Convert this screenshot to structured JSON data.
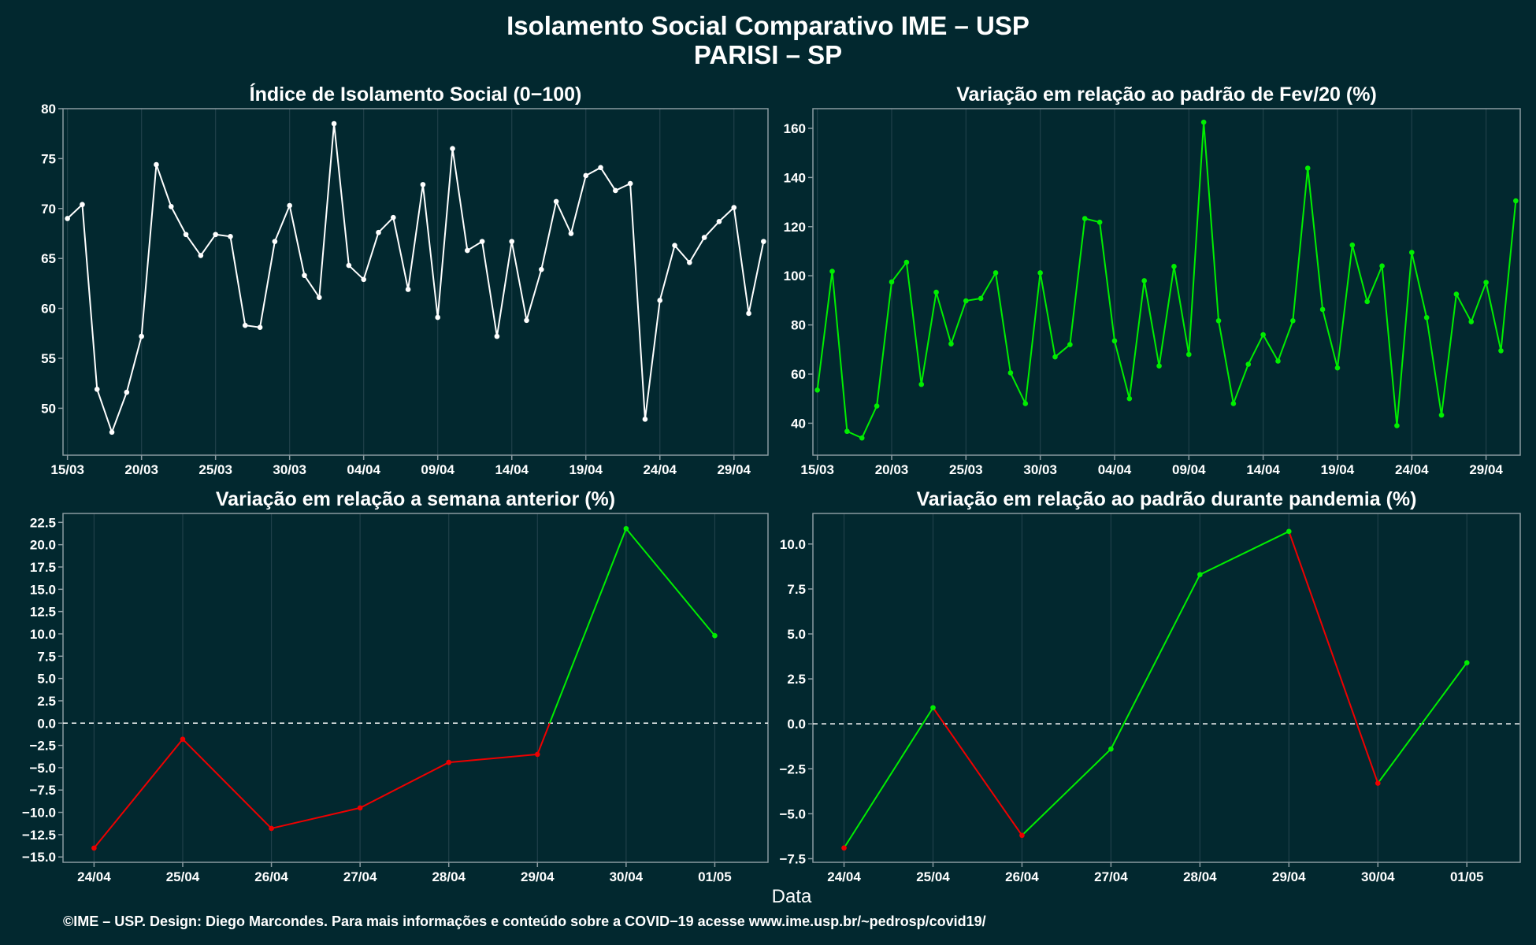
{
  "header": {
    "title": "Isolamento Social Comparativo IME – USP",
    "subtitle": "PARISI – SP"
  },
  "xlabel": "Data",
  "footer": "©IME – USP. Design: Diego Marcondes. Para mais informações e conteúdo sobre a COVID−19 acesse www.ime.usp.br/~pedrosp/covid19/",
  "colors": {
    "background": "#02282f",
    "axis": "#8a9aa0",
    "grid": "#20404a",
    "white_series": "#ffffff",
    "green_series": "#00ee00",
    "red_series": "#ee0000",
    "zero_line": "#ffffff"
  },
  "chart_data": [
    {
      "id": "indice",
      "type": "line",
      "title": "Índice de Isolamento Social (0−100)",
      "ylim": [
        45.3,
        80
      ],
      "yticks": [
        50,
        55,
        60,
        65,
        70,
        75,
        80
      ],
      "ytick_labels": [
        "50",
        "55",
        "60",
        "65",
        "70",
        "75",
        "80"
      ],
      "xlim": [
        -0.3,
        47.3
      ],
      "xticks": [
        0,
        5,
        10,
        15,
        20,
        25,
        30,
        35,
        40,
        45
      ],
      "xtick_labels": [
        "15/03",
        "20/03",
        "25/03",
        "30/03",
        "04/04",
        "09/04",
        "14/04",
        "19/04",
        "24/04",
        "29/04"
      ],
      "color": "white",
      "grid": true,
      "values": [
        69.0,
        70.4,
        51.9,
        47.6,
        51.6,
        57.2,
        74.4,
        70.2,
        67.4,
        65.3,
        67.4,
        67.2,
        58.3,
        58.1,
        66.7,
        70.3,
        63.3,
        61.1,
        78.5,
        64.3,
        62.9,
        67.6,
        69.1,
        61.9,
        72.4,
        59.1,
        76.0,
        65.8,
        66.7,
        57.2,
        66.7,
        58.8,
        63.9,
        70.7,
        67.5,
        73.3,
        74.1,
        71.8,
        72.5,
        48.9,
        60.8,
        66.3,
        64.6,
        67.1,
        68.7,
        70.1,
        59.5,
        66.7
      ]
    },
    {
      "id": "fev20",
      "type": "line",
      "title": "Variação em relação ao padrão de Fev/20 (%)",
      "ylim": [
        27,
        168
      ],
      "yticks": [
        40,
        60,
        80,
        100,
        120,
        140,
        160
      ],
      "ytick_labels": [
        "40",
        "60",
        "80",
        "100",
        "120",
        "140",
        "160"
      ],
      "xlim": [
        -0.3,
        47.3
      ],
      "xticks": [
        0,
        5,
        10,
        15,
        20,
        25,
        30,
        35,
        40,
        45
      ],
      "xtick_labels": [
        "15/03",
        "20/03",
        "25/03",
        "30/03",
        "04/04",
        "09/04",
        "14/04",
        "19/04",
        "24/04",
        "29/04"
      ],
      "color": "green",
      "grid": true,
      "values": [
        53.5,
        101.8,
        36.7,
        34.0,
        47.0,
        97.5,
        105.5,
        55.8,
        93.3,
        72.3,
        89.8,
        90.8,
        101.2,
        60.5,
        48.0,
        101.2,
        67.0,
        72.0,
        123.3,
        121.8,
        73.5,
        50.0,
        98.0,
        63.3,
        103.8,
        68.0,
        162.5,
        81.7,
        48.0,
        64.0,
        76.0,
        65.3,
        81.7,
        143.8,
        86.3,
        62.5,
        112.5,
        89.5,
        104.0,
        39.0,
        109.5,
        83.0,
        43.3,
        92.5,
        81.3,
        97.3,
        69.5,
        130.5
      ]
    },
    {
      "id": "semana",
      "type": "line",
      "title": "Variação em relação a semana anterior (%)",
      "ylim": [
        -15.6,
        23.5
      ],
      "yticks": [
        -15,
        -12.5,
        -10,
        -7.5,
        -5,
        -2.5,
        0,
        2.5,
        5,
        7.5,
        10,
        12.5,
        15,
        17.5,
        20,
        22.5
      ],
      "ytick_labels": [
        "−15.0",
        "−12.5",
        "−10.0",
        "−7.5",
        "−5.0",
        "−2.5",
        "0.0",
        "2.5",
        "5.0",
        "7.5",
        "10.0",
        "12.5",
        "15.0",
        "17.5",
        "20.0",
        "22.5"
      ],
      "xlim": [
        -0.35,
        7.6
      ],
      "xticks": [
        0,
        1,
        2,
        3,
        4,
        5,
        6,
        7
      ],
      "xtick_labels": [
        "24/04",
        "25/04",
        "26/04",
        "27/04",
        "28/04",
        "29/04",
        "30/04",
        "01/05"
      ],
      "color": "sign",
      "grid": true,
      "zero_line": true,
      "values": [
        -14.0,
        -1.8,
        -11.8,
        -9.5,
        -4.4,
        -3.5,
        21.8,
        9.8
      ]
    },
    {
      "id": "pandemia",
      "type": "line",
      "title": "Variação em relação ao padrão durante pandemia (%)",
      "ylim": [
        -7.7,
        11.7
      ],
      "yticks": [
        -7.5,
        -5,
        -2.5,
        0,
        2.5,
        5,
        7.5,
        10
      ],
      "ytick_labels": [
        "−7.5",
        "−5.0",
        "−2.5",
        "0.0",
        "2.5",
        "5.0",
        "7.5",
        "10.0"
      ],
      "xlim": [
        -0.35,
        7.6
      ],
      "xticks": [
        0,
        1,
        2,
        3,
        4,
        5,
        6,
        7
      ],
      "xtick_labels": [
        "24/04",
        "25/04",
        "26/04",
        "27/04",
        "28/04",
        "29/04",
        "30/04",
        "01/05"
      ],
      "color": "slope",
      "grid": true,
      "zero_line": true,
      "values": [
        -6.9,
        0.9,
        -6.2,
        -1.4,
        8.3,
        10.7,
        -3.3,
        3.4
      ]
    }
  ]
}
